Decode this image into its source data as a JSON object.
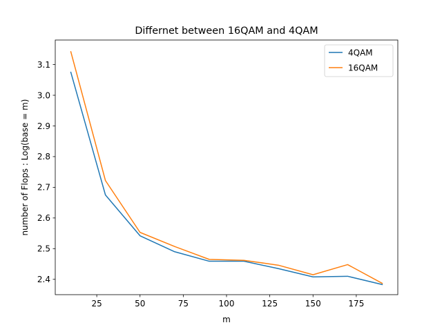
{
  "chart_data": {
    "type": "line",
    "title": "Differnet between 16QAM and 4QAM",
    "xlabel": "m",
    "ylabel": "number of Flops : Log(base = m)",
    "xlim": [
      1,
      199
    ],
    "ylim": [
      2.35,
      3.18
    ],
    "xticks": [
      25,
      50,
      75,
      100,
      125,
      150,
      175
    ],
    "xtick_labels": [
      "25",
      "50",
      "75",
      "100",
      "125",
      "150",
      "175"
    ],
    "yticks": [
      2.4,
      2.5,
      2.6,
      2.7,
      2.8,
      2.9,
      3.0,
      3.1
    ],
    "ytick_labels": [
      "2.4",
      "2.5",
      "2.6",
      "2.7",
      "2.8",
      "2.9",
      "3.0",
      "3.1"
    ],
    "grid": false,
    "legend_position": "top-right",
    "x": [
      10,
      30,
      50,
      70,
      90,
      110,
      130,
      150,
      170,
      190
    ],
    "series": [
      {
        "name": "4QAM",
        "color": "#1f77b4",
        "values": [
          3.075,
          2.675,
          2.542,
          2.49,
          2.459,
          2.459,
          2.435,
          2.408,
          2.41,
          2.383
        ]
      },
      {
        "name": "16QAM",
        "color": "#ff7f0e",
        "values": [
          3.142,
          2.722,
          2.553,
          2.507,
          2.465,
          2.462,
          2.446,
          2.415,
          2.448,
          2.387
        ]
      }
    ]
  }
}
